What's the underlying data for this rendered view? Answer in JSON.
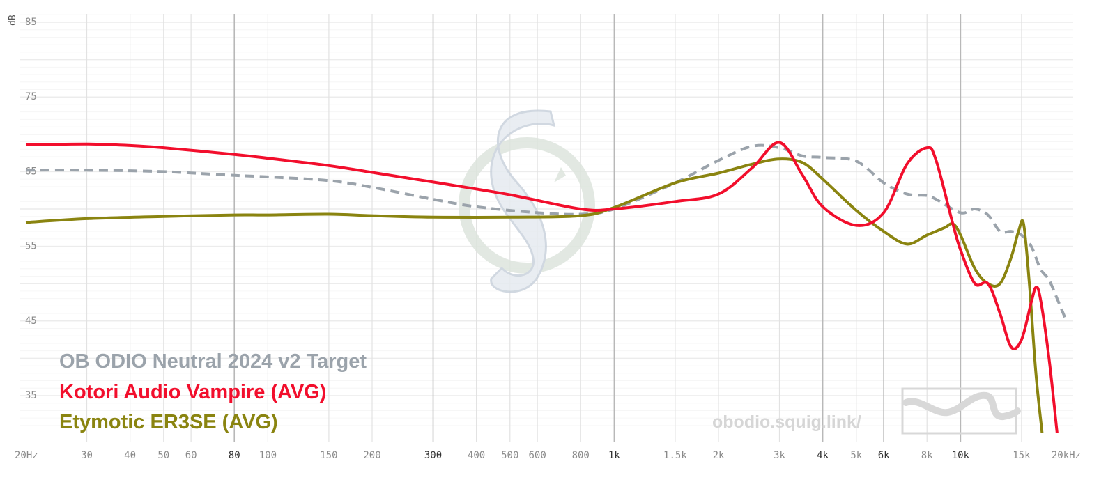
{
  "chart_data": {
    "type": "line",
    "x_scale": "log",
    "y_unit": "dB",
    "ylim": [
      30,
      87
    ],
    "xlim": [
      20,
      20000
    ],
    "grid": true,
    "legend_placement": "bottom-left",
    "y_ticks": [
      {
        "value": 85,
        "label": "85"
      },
      {
        "value": 75,
        "label": "75"
      },
      {
        "value": 65,
        "label": "65"
      },
      {
        "value": 55,
        "label": "55"
      },
      {
        "value": 45,
        "label": "45"
      },
      {
        "value": 35,
        "label": "35"
      }
    ],
    "x_ticks": [
      {
        "value": 20,
        "label": "20Hz",
        "major": false
      },
      {
        "value": 30,
        "label": "30",
        "major": false
      },
      {
        "value": 40,
        "label": "40",
        "major": false
      },
      {
        "value": 50,
        "label": "50",
        "major": false
      },
      {
        "value": 60,
        "label": "60",
        "major": false
      },
      {
        "value": 80,
        "label": "80",
        "major": true
      },
      {
        "value": 100,
        "label": "100",
        "major": false
      },
      {
        "value": 150,
        "label": "150",
        "major": false
      },
      {
        "value": 200,
        "label": "200",
        "major": false
      },
      {
        "value": 300,
        "label": "300",
        "major": true
      },
      {
        "value": 400,
        "label": "400",
        "major": false
      },
      {
        "value": 500,
        "label": "500",
        "major": false
      },
      {
        "value": 600,
        "label": "600",
        "major": false
      },
      {
        "value": 800,
        "label": "800",
        "major": false
      },
      {
        "value": 1000,
        "label": "1k",
        "major": true
      },
      {
        "value": 1500,
        "label": "1.5k",
        "major": false
      },
      {
        "value": 2000,
        "label": "2k",
        "major": false
      },
      {
        "value": 3000,
        "label": "3k",
        "major": false
      },
      {
        "value": 4000,
        "label": "4k",
        "major": true
      },
      {
        "value": 5000,
        "label": "5k",
        "major": false
      },
      {
        "value": 6000,
        "label": "6k",
        "major": true
      },
      {
        "value": 8000,
        "label": "8k",
        "major": false
      },
      {
        "value": 10000,
        "label": "10k",
        "major": true
      },
      {
        "value": 15000,
        "label": "15k",
        "major": false
      },
      {
        "value": 20000,
        "label": "20kHz",
        "major": false
      }
    ],
    "series": [
      {
        "name": "OB ODIO Neutral 2024 v2 Target",
        "color": "#9ba3ab",
        "dashed": true,
        "x": [
          20,
          30,
          50,
          80,
          100,
          150,
          200,
          300,
          400,
          600,
          800,
          1000,
          1500,
          2000,
          2500,
          3000,
          3500,
          4000,
          5000,
          6000,
          7000,
          8000,
          8500,
          10000,
          11000,
          12000,
          13000,
          14000,
          15000,
          16000,
          17000,
          18000,
          19000,
          20000
        ],
        "y": [
          65.2,
          65.2,
          65.0,
          64.5,
          64.3,
          63.8,
          62.9,
          61.3,
          60.3,
          59.5,
          59.3,
          60.0,
          63.5,
          66.5,
          68.4,
          68.2,
          67.1,
          66.9,
          66.4,
          63.5,
          62.0,
          61.8,
          61.3,
          59.5,
          60.0,
          59.2,
          57.0,
          57.0,
          56.5,
          55.0,
          52.0,
          50.5,
          48.0,
          45.5
        ]
      },
      {
        "name": "Kotori Audio Vampire (AVG)",
        "color": "#f20e2c",
        "dashed": false,
        "x": [
          20,
          30,
          40,
          50,
          80,
          100,
          150,
          200,
          300,
          500,
          800,
          1000,
          1500,
          2000,
          2500,
          3000,
          3500,
          4000,
          5000,
          6000,
          7000,
          8000,
          8500,
          9500,
          10000,
          11000,
          12000,
          13000,
          14000,
          15000,
          16000,
          16500,
          17000,
          18000,
          19000
        ],
        "y": [
          68.6,
          68.7,
          68.5,
          68.2,
          67.3,
          66.8,
          65.8,
          64.9,
          63.6,
          61.9,
          60.0,
          60.0,
          61.0,
          62.0,
          65.5,
          68.9,
          64.5,
          60.3,
          57.8,
          59.5,
          66.0,
          68.2,
          66.5,
          58.0,
          54.5,
          50.0,
          50.0,
          46.0,
          41.5,
          42.5,
          47.5,
          49.5,
          48.0,
          40.0,
          30.0
        ]
      },
      {
        "name": "Etymotic ER3SE (AVG)",
        "color": "#8a8410",
        "dashed": false,
        "x": [
          20,
          30,
          50,
          80,
          100,
          150,
          200,
          300,
          500,
          800,
          1000,
          1500,
          2000,
          2500,
          3000,
          3500,
          4000,
          5000,
          6000,
          7000,
          8000,
          9000,
          9500,
          10000,
          11000,
          12000,
          13000,
          14000,
          14700,
          15200,
          15800,
          16500,
          17200
        ],
        "y": [
          58.2,
          58.7,
          59.0,
          59.2,
          59.2,
          59.3,
          59.1,
          58.9,
          58.9,
          59.1,
          60.2,
          63.5,
          64.8,
          66.0,
          66.7,
          66.2,
          64.0,
          59.8,
          57.0,
          55.3,
          56.5,
          57.5,
          58.0,
          56.5,
          52.0,
          50.0,
          50.0,
          53.5,
          57.0,
          58.0,
          50.0,
          38.0,
          30.0
        ]
      }
    ]
  },
  "watermark": {
    "url_text": "obodio.squig.link/"
  }
}
